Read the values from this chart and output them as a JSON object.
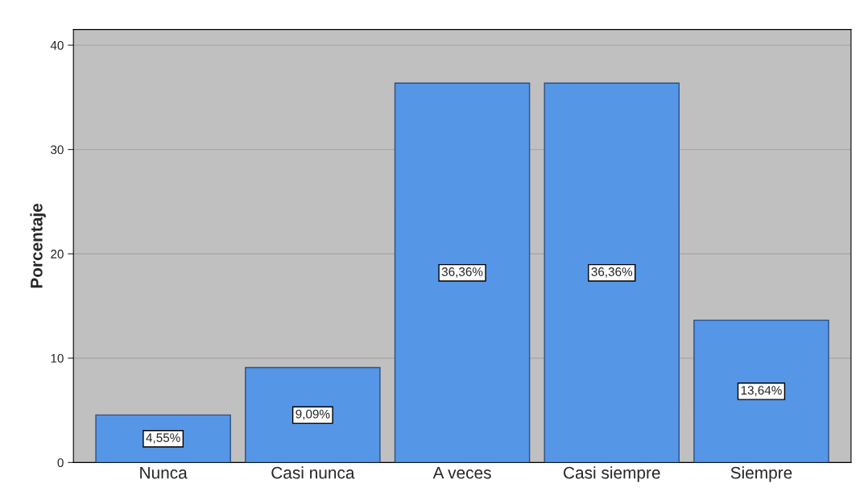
{
  "chart_data": {
    "type": "bar",
    "ylabel": "Porcentaje",
    "categories": [
      "Nunca",
      "Casi nunca",
      "A veces",
      "Casi siempre",
      "Siempre"
    ],
    "values": [
      4.55,
      9.09,
      36.36,
      36.36,
      13.64
    ],
    "value_labels": [
      "4,55%",
      "9,09%",
      "36,36%",
      "36,36%",
      "13,64%"
    ],
    "color": "#5596e6",
    "ylim": [
      0,
      41.5
    ],
    "yticks": [
      0,
      10,
      20,
      30,
      40
    ],
    "grid": "y"
  }
}
